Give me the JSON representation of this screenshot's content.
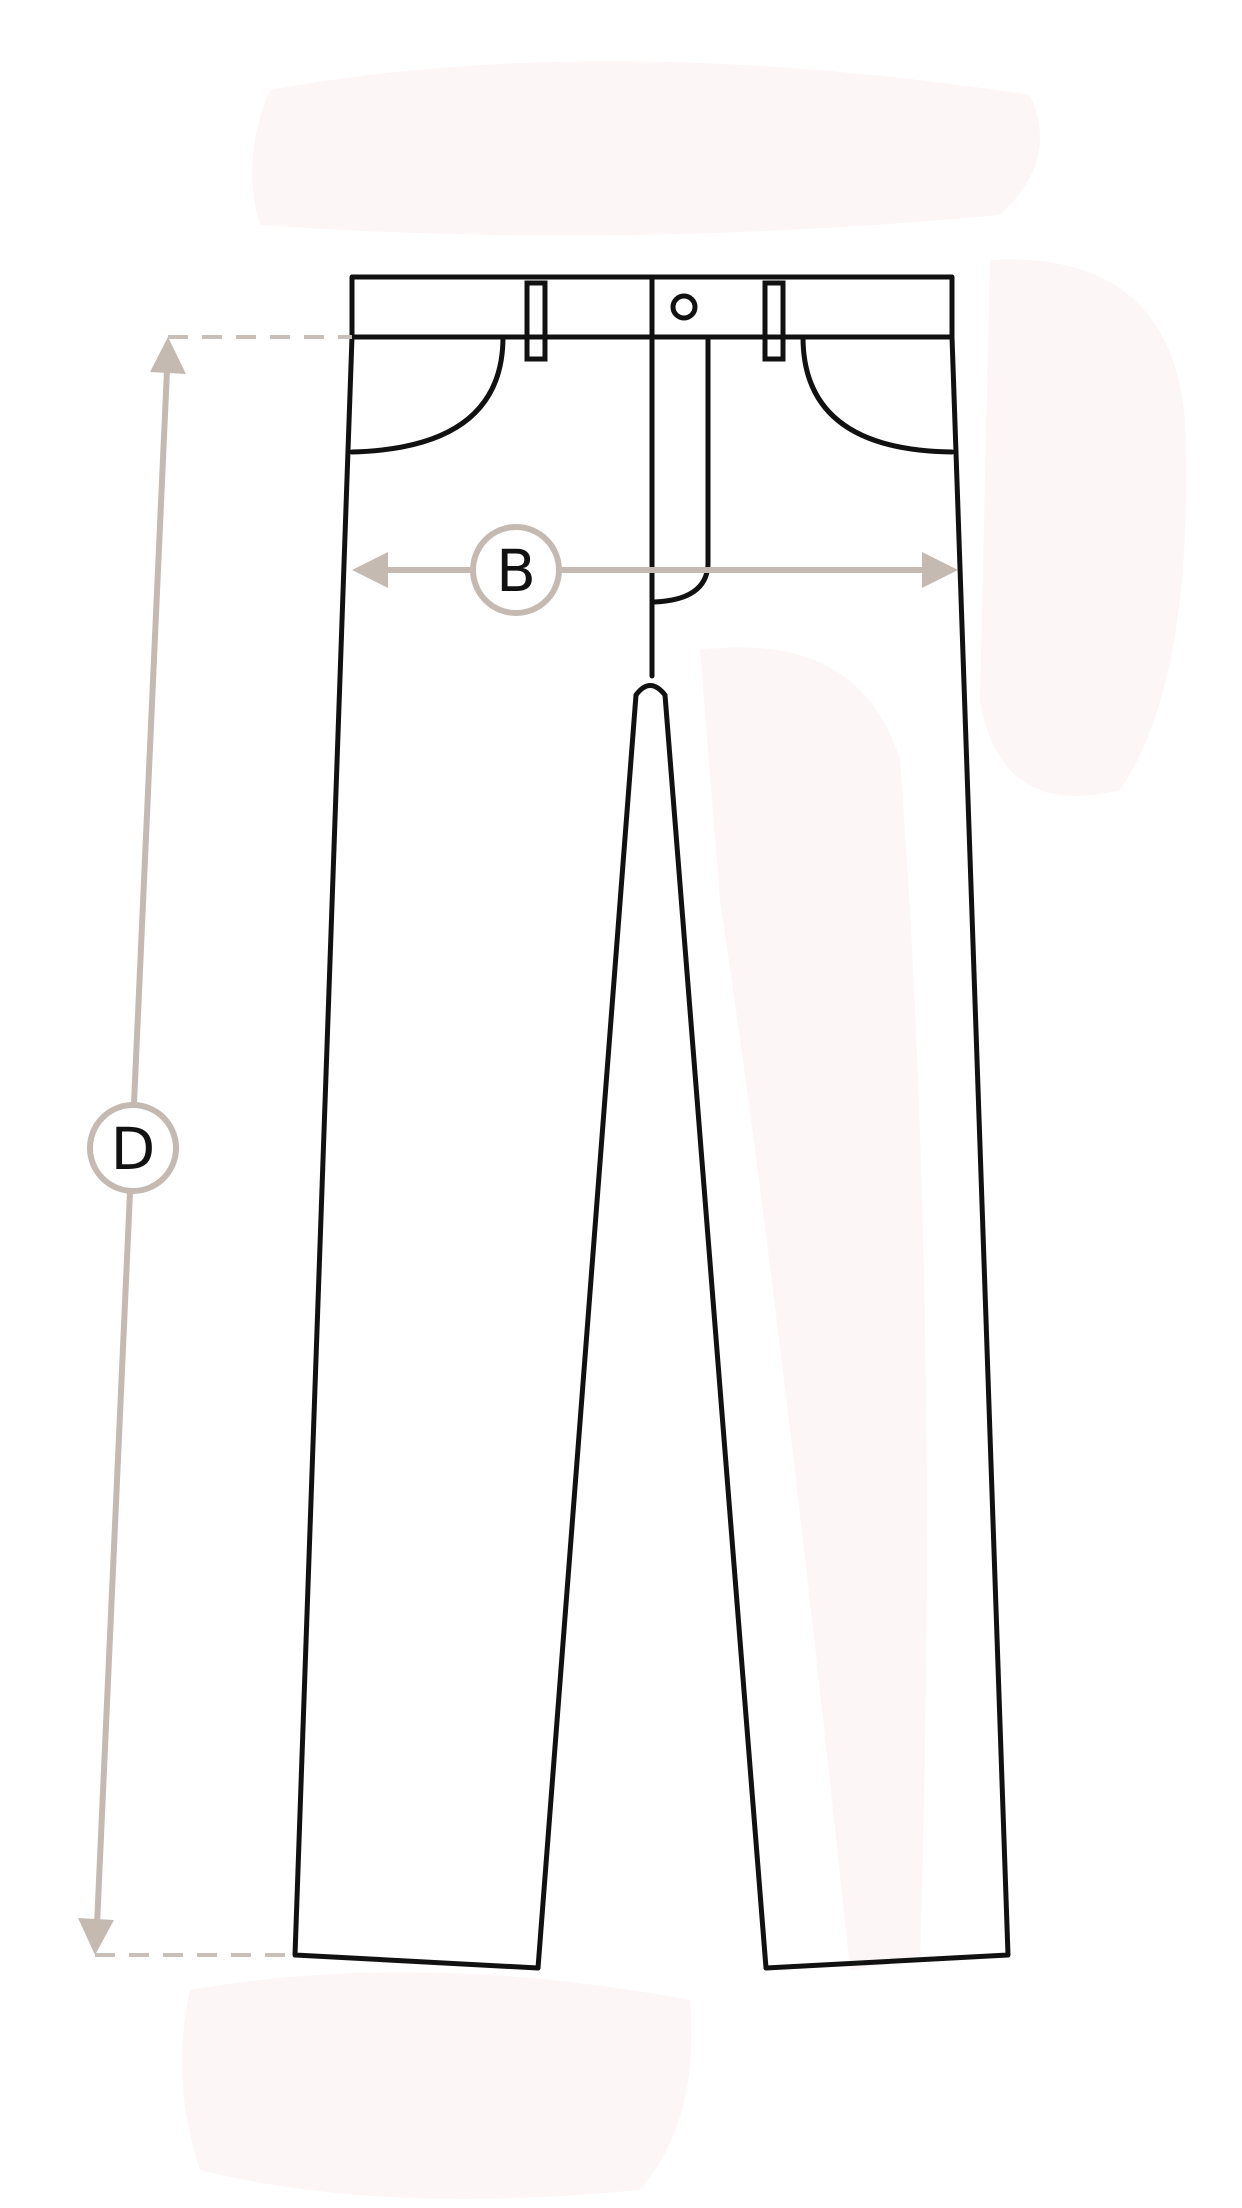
{
  "diagram": {
    "measurements": [
      {
        "id": "B",
        "label": "B"
      },
      {
        "id": "D",
        "label": "D"
      }
    ]
  },
  "colors": {
    "outline": "#111111",
    "measure": "#c4bab2",
    "label_bg": "#ffffff",
    "smudge": "#fdf5f5"
  },
  "icons": [
    "pants-outline",
    "button-icon",
    "belt-loop",
    "measurement-arrow"
  ]
}
